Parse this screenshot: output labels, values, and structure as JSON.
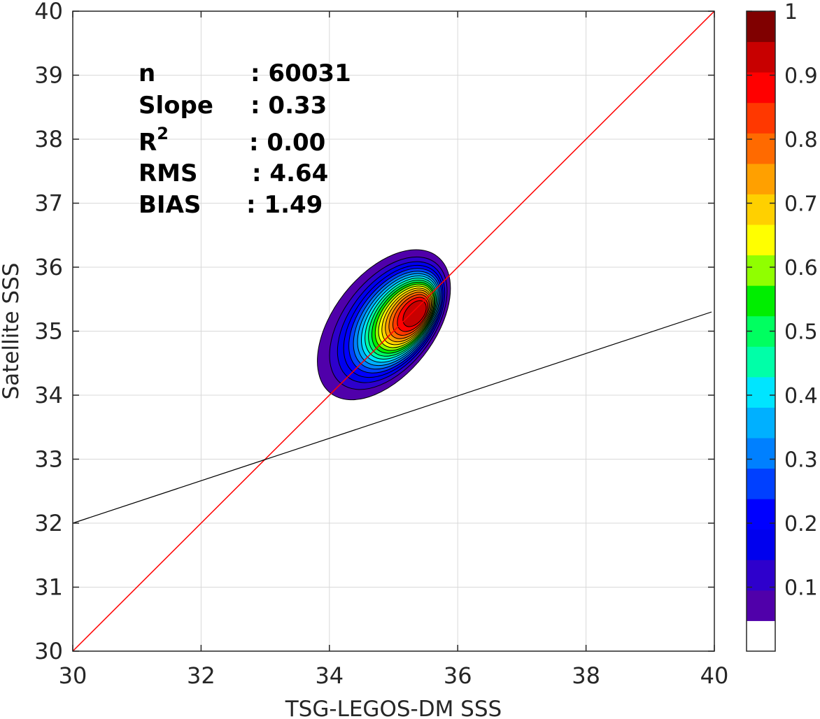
{
  "chart_data": {
    "type": "contour",
    "xlabel": "TSG-LEGOS-DM SSS",
    "ylabel": "Satellite SSS",
    "xlim": [
      30,
      40
    ],
    "ylim": [
      30,
      40
    ],
    "x_ticks": [
      "30",
      "32",
      "34",
      "36",
      "38",
      "40"
    ],
    "y_ticks": [
      "30",
      "31",
      "32",
      "33",
      "34",
      "35",
      "36",
      "37",
      "38",
      "39",
      "40"
    ],
    "grid": true,
    "stats": [
      {
        "label": "n",
        "value": ": 60031"
      },
      {
        "label": "Slope",
        "value": ": 0.33"
      },
      {
        "label": "R",
        "label_sup": "2",
        "value": ": 0.00"
      },
      {
        "label": "RMS",
        "value": ": 4.64"
      },
      {
        "label": "BIAS",
        "value": ": 1.49"
      }
    ],
    "one_to_one_line": {
      "x": [
        30,
        40
      ],
      "y": [
        30,
        40
      ],
      "color": "#ff0000"
    },
    "regression_line": {
      "x": [
        30,
        40
      ],
      "y": [
        32.0,
        35.3
      ],
      "color": "#000000"
    },
    "density_peak": {
      "x": 35.4,
      "y": 35.3
    },
    "contour_levels": [
      0.05,
      0.1,
      0.15,
      0.2,
      0.25,
      0.3,
      0.35,
      0.4,
      0.45,
      0.5,
      0.55,
      0.6,
      0.65,
      0.7,
      0.75,
      0.8,
      0.85,
      0.9,
      0.95
    ],
    "colorbar": {
      "ticks": [
        "0.1",
        "0.2",
        "0.3",
        "0.4",
        "0.5",
        "0.6",
        "0.7",
        "0.8",
        "0.9",
        "1"
      ],
      "tick_values": [
        0.1,
        0.2,
        0.3,
        0.4,
        0.5,
        0.6,
        0.7,
        0.8,
        0.9,
        1.0
      ],
      "range": [
        0,
        1
      ],
      "colors": [
        "#ffffff",
        "#5000aa",
        "#2e00cc",
        "#0000ee",
        "#0000ff",
        "#0040ff",
        "#0080ff",
        "#00b0ff",
        "#00e5ff",
        "#00ffa8",
        "#00ff60",
        "#00ee00",
        "#90ff00",
        "#ffff00",
        "#ffd000",
        "#ffa000",
        "#ff6a00",
        "#ff3800",
        "#ff0000",
        "#c80000",
        "#800000"
      ]
    }
  }
}
